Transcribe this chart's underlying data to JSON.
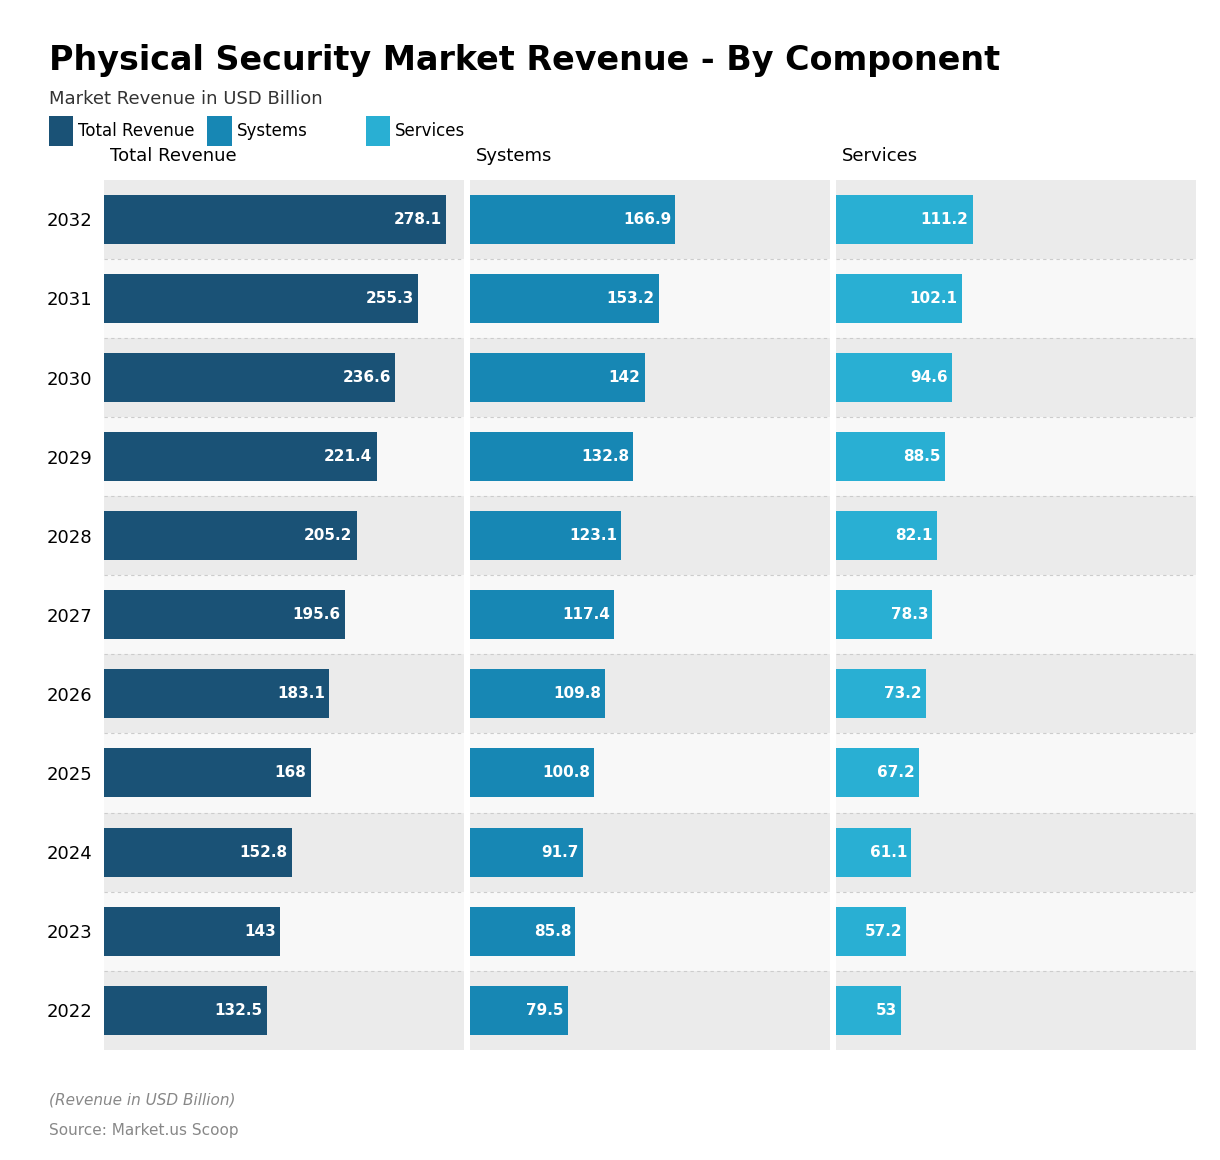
{
  "title": "Physical Security Market Revenue - By Component",
  "subtitle": "Market Revenue in USD Billion",
  "footer_line1": "(Revenue in USD Billion)",
  "footer_line2": "Source: Market.us Scoop",
  "legend_labels": [
    "Total Revenue",
    "Systems",
    "Services"
  ],
  "col_headers": [
    "Total Revenue",
    "Systems",
    "Services"
  ],
  "years": [
    2032,
    2031,
    2030,
    2029,
    2028,
    2027,
    2026,
    2025,
    2024,
    2023,
    2022
  ],
  "total_revenue": [
    278.1,
    255.3,
    236.6,
    221.4,
    205.2,
    195.6,
    183.1,
    168,
    152.8,
    143,
    132.5
  ],
  "systems": [
    166.9,
    153.2,
    142,
    132.8,
    123.1,
    117.4,
    109.8,
    100.8,
    91.7,
    85.8,
    79.5
  ],
  "services": [
    111.2,
    102.1,
    94.6,
    88.5,
    82.1,
    78.3,
    73.2,
    67.2,
    61.1,
    57.2,
    53
  ],
  "color_total": "#1a5276",
  "color_systems": "#1787b4",
  "color_services": "#29afd3",
  "color_bg_even": "#ebebeb",
  "color_bg_odd": "#f8f8f8",
  "max_value": 278.1,
  "bar_height": 0.62
}
